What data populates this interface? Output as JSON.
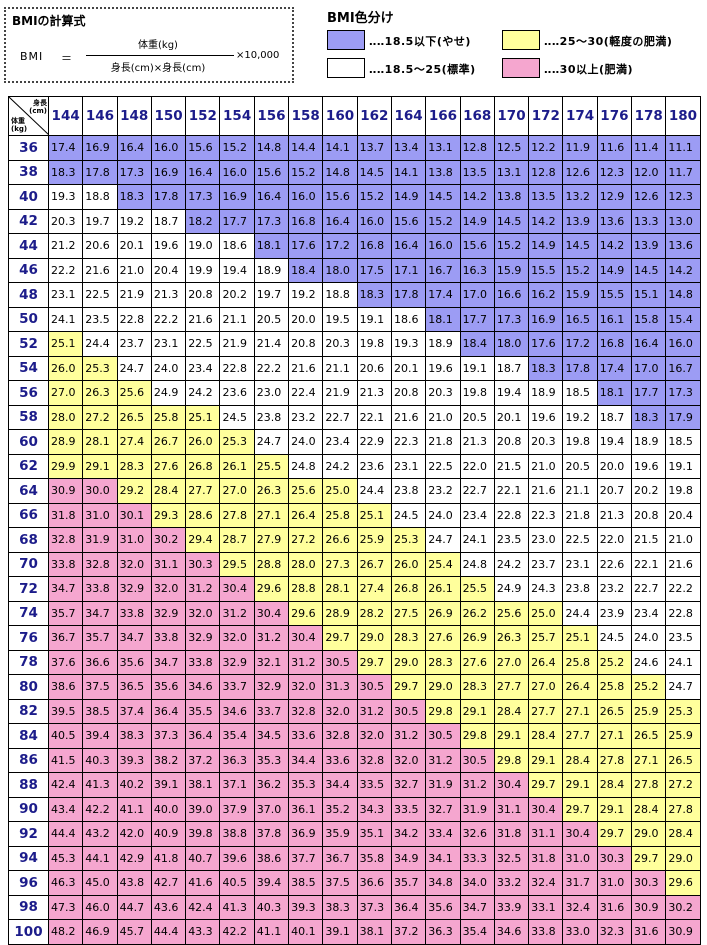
{
  "formula": {
    "title": "BMIの計算式",
    "lhs": "BMI",
    "equals": "＝",
    "numerator": "体重(kg)",
    "denominator": "身長(cm)×身長(cm)",
    "multiplier": "×10,000"
  },
  "legend": {
    "title": "BMI色分け",
    "items": [
      {
        "color": "#9c9cf4",
        "label": "‥‥18.5以下(やせ)"
      },
      {
        "color": "#ffff9c",
        "label": "‥‥25〜30(軽度の肥満)"
      },
      {
        "color": "#ffffff",
        "label": "‥‥18.5〜25(標準)"
      },
      {
        "color": "#f5a6cf",
        "label": "‥‥30以上(肥満)"
      }
    ]
  },
  "table": {
    "corner_height_label": "身長\n(cm)",
    "corner_weight_label": "体重\n(kg)",
    "heights": [
      "144",
      "146",
      "148",
      "150",
      "152",
      "154",
      "156",
      "158",
      "160",
      "162",
      "164",
      "166",
      "168",
      "170",
      "172",
      "174",
      "176",
      "178",
      "180"
    ],
    "weights": [
      "36",
      "38",
      "40",
      "42",
      "44",
      "46",
      "48",
      "50",
      "52",
      "54",
      "56",
      "58",
      "60",
      "62",
      "64",
      "66",
      "68",
      "70",
      "72",
      "74",
      "76",
      "78",
      "80",
      "82",
      "84",
      "86",
      "88",
      "90",
      "92",
      "94",
      "96",
      "98",
      "100"
    ],
    "rows": [
      [
        "17.4",
        "16.9",
        "16.4",
        "16.0",
        "15.6",
        "15.2",
        "14.8",
        "14.4",
        "14.1",
        "13.7",
        "13.4",
        "13.1",
        "12.8",
        "12.5",
        "12.2",
        "11.9",
        "11.6",
        "11.4",
        "11.1"
      ],
      [
        "18.3",
        "17.8",
        "17.3",
        "16.9",
        "16.4",
        "16.0",
        "15.6",
        "15.2",
        "14.8",
        "14.5",
        "14.1",
        "13.8",
        "13.5",
        "13.1",
        "12.8",
        "12.6",
        "12.3",
        "12.0",
        "11.7"
      ],
      [
        "19.3",
        "18.8",
        "18.3",
        "17.8",
        "17.3",
        "16.9",
        "16.4",
        "16.0",
        "15.6",
        "15.2",
        "14.9",
        "14.5",
        "14.2",
        "13.8",
        "13.5",
        "13.2",
        "12.9",
        "12.6",
        "12.3"
      ],
      [
        "20.3",
        "19.7",
        "19.2",
        "18.7",
        "18.2",
        "17.7",
        "17.3",
        "16.8",
        "16.4",
        "16.0",
        "15.6",
        "15.2",
        "14.9",
        "14.5",
        "14.2",
        "13.9",
        "13.6",
        "13.3",
        "13.0"
      ],
      [
        "21.2",
        "20.6",
        "20.1",
        "19.6",
        "19.0",
        "18.6",
        "18.1",
        "17.6",
        "17.2",
        "16.8",
        "16.4",
        "16.0",
        "15.6",
        "15.2",
        "14.9",
        "14.5",
        "14.2",
        "13.9",
        "13.6"
      ],
      [
        "22.2",
        "21.6",
        "21.0",
        "20.4",
        "19.9",
        "19.4",
        "18.9",
        "18.4",
        "18.0",
        "17.5",
        "17.1",
        "16.7",
        "16.3",
        "15.9",
        "15.5",
        "15.2",
        "14.9",
        "14.5",
        "14.2"
      ],
      [
        "23.1",
        "22.5",
        "21.9",
        "21.3",
        "20.8",
        "20.2",
        "19.7",
        "19.2",
        "18.8",
        "18.3",
        "17.8",
        "17.4",
        "17.0",
        "16.6",
        "16.2",
        "15.9",
        "15.5",
        "15.1",
        "14.8"
      ],
      [
        "24.1",
        "23.5",
        "22.8",
        "22.2",
        "21.6",
        "21.1",
        "20.5",
        "20.0",
        "19.5",
        "19.1",
        "18.6",
        "18.1",
        "17.7",
        "17.3",
        "16.9",
        "16.5",
        "16.1",
        "15.8",
        "15.4"
      ],
      [
        "25.1",
        "24.4",
        "23.7",
        "23.1",
        "22.5",
        "21.9",
        "21.4",
        "20.8",
        "20.3",
        "19.8",
        "19.3",
        "18.9",
        "18.4",
        "18.0",
        "17.6",
        "17.2",
        "16.8",
        "16.4",
        "16.0"
      ],
      [
        "26.0",
        "25.3",
        "24.7",
        "24.0",
        "23.4",
        "22.8",
        "22.2",
        "21.6",
        "21.1",
        "20.6",
        "20.1",
        "19.6",
        "19.1",
        "18.7",
        "18.3",
        "17.8",
        "17.4",
        "17.0",
        "16.7"
      ],
      [
        "27.0",
        "26.3",
        "25.6",
        "24.9",
        "24.2",
        "23.6",
        "23.0",
        "22.4",
        "21.9",
        "21.3",
        "20.8",
        "20.3",
        "19.8",
        "19.4",
        "18.9",
        "18.5",
        "18.1",
        "17.7",
        "17.3"
      ],
      [
        "28.0",
        "27.2",
        "26.5",
        "25.8",
        "25.1",
        "24.5",
        "23.8",
        "23.2",
        "22.7",
        "22.1",
        "21.6",
        "21.0",
        "20.5",
        "20.1",
        "19.6",
        "19.2",
        "18.7",
        "18.3",
        "17.9"
      ],
      [
        "28.9",
        "28.1",
        "27.4",
        "26.7",
        "26.0",
        "25.3",
        "24.7",
        "24.0",
        "23.4",
        "22.9",
        "22.3",
        "21.8",
        "21.3",
        "20.8",
        "20.3",
        "19.8",
        "19.4",
        "18.9",
        "18.5"
      ],
      [
        "29.9",
        "29.1",
        "28.3",
        "27.6",
        "26.8",
        "26.1",
        "25.5",
        "24.8",
        "24.2",
        "23.6",
        "23.1",
        "22.5",
        "22.0",
        "21.5",
        "21.0",
        "20.5",
        "20.0",
        "19.6",
        "19.1"
      ],
      [
        "30.9",
        "30.0",
        "29.2",
        "28.4",
        "27.7",
        "27.0",
        "26.3",
        "25.6",
        "25.0",
        "24.4",
        "23.8",
        "23.2",
        "22.7",
        "22.1",
        "21.6",
        "21.1",
        "20.7",
        "20.2",
        "19.8"
      ],
      [
        "31.8",
        "31.0",
        "30.1",
        "29.3",
        "28.6",
        "27.8",
        "27.1",
        "26.4",
        "25.8",
        "25.1",
        "24.5",
        "24.0",
        "23.4",
        "22.8",
        "22.3",
        "21.8",
        "21.3",
        "20.8",
        "20.4"
      ],
      [
        "32.8",
        "31.9",
        "31.0",
        "30.2",
        "29.4",
        "28.7",
        "27.9",
        "27.2",
        "26.6",
        "25.9",
        "25.3",
        "24.7",
        "24.1",
        "23.5",
        "23.0",
        "22.5",
        "22.0",
        "21.5",
        "21.0"
      ],
      [
        "33.8",
        "32.8",
        "32.0",
        "31.1",
        "30.3",
        "29.5",
        "28.8",
        "28.0",
        "27.3",
        "26.7",
        "26.0",
        "25.4",
        "24.8",
        "24.2",
        "23.7",
        "23.1",
        "22.6",
        "22.1",
        "21.6"
      ],
      [
        "34.7",
        "33.8",
        "32.9",
        "32.0",
        "31.2",
        "30.4",
        "29.6",
        "28.8",
        "28.1",
        "27.4",
        "26.8",
        "26.1",
        "25.5",
        "24.9",
        "24.3",
        "23.8",
        "23.2",
        "22.7",
        "22.2"
      ],
      [
        "35.7",
        "34.7",
        "33.8",
        "32.9",
        "32.0",
        "31.2",
        "30.4",
        "29.6",
        "28.9",
        "28.2",
        "27.5",
        "26.9",
        "26.2",
        "25.6",
        "25.0",
        "24.4",
        "23.9",
        "23.4",
        "22.8"
      ],
      [
        "36.7",
        "35.7",
        "34.7",
        "33.8",
        "32.9",
        "32.0",
        "31.2",
        "30.4",
        "29.7",
        "29.0",
        "28.3",
        "27.6",
        "26.9",
        "26.3",
        "25.7",
        "25.1",
        "24.5",
        "24.0",
        "23.5"
      ],
      [
        "37.6",
        "36.6",
        "35.6",
        "34.7",
        "33.8",
        "32.9",
        "32.1",
        "31.2",
        "30.5",
        "29.7",
        "29.0",
        "28.3",
        "27.6",
        "27.0",
        "26.4",
        "25.8",
        "25.2",
        "24.6",
        "24.1"
      ],
      [
        "38.6",
        "37.5",
        "36.5",
        "35.6",
        "34.6",
        "33.7",
        "32.9",
        "32.0",
        "31.3",
        "30.5",
        "29.7",
        "29.0",
        "28.3",
        "27.7",
        "27.0",
        "26.4",
        "25.8",
        "25.2",
        "24.7"
      ],
      [
        "39.5",
        "38.5",
        "37.4",
        "36.4",
        "35.5",
        "34.6",
        "33.7",
        "32.8",
        "32.0",
        "31.2",
        "30.5",
        "29.8",
        "29.1",
        "28.4",
        "27.7",
        "27.1",
        "26.5",
        "25.9",
        "25.3"
      ],
      [
        "40.5",
        "39.4",
        "38.3",
        "37.3",
        "36.4",
        "35.4",
        "34.5",
        "33.6",
        "32.8",
        "32.0",
        "31.2",
        "30.5",
        "29.8",
        "29.1",
        "28.4",
        "27.7",
        "27.1",
        "26.5",
        "25.9"
      ],
      [
        "41.5",
        "40.3",
        "39.3",
        "38.2",
        "37.2",
        "36.3",
        "35.3",
        "34.4",
        "33.6",
        "32.8",
        "32.0",
        "31.2",
        "30.5",
        "29.8",
        "29.1",
        "28.4",
        "27.8",
        "27.1",
        "26.5"
      ],
      [
        "42.4",
        "41.3",
        "40.2",
        "39.1",
        "38.1",
        "37.1",
        "36.2",
        "35.3",
        "34.4",
        "33.5",
        "32.7",
        "31.9",
        "31.2",
        "30.4",
        "29.7",
        "29.1",
        "28.4",
        "27.8",
        "27.2"
      ],
      [
        "43.4",
        "42.2",
        "41.1",
        "40.0",
        "39.0",
        "37.9",
        "37.0",
        "36.1",
        "35.2",
        "34.3",
        "33.5",
        "32.7",
        "31.9",
        "31.1",
        "30.4",
        "29.7",
        "29.1",
        "28.4",
        "27.8"
      ],
      [
        "44.4",
        "43.2",
        "42.0",
        "40.9",
        "39.8",
        "38.8",
        "37.8",
        "36.9",
        "35.9",
        "35.1",
        "34.2",
        "33.4",
        "32.6",
        "31.8",
        "31.1",
        "30.4",
        "29.7",
        "29.0",
        "28.4"
      ],
      [
        "45.3",
        "44.1",
        "42.9",
        "41.8",
        "40.7",
        "39.6",
        "38.6",
        "37.7",
        "36.7",
        "35.8",
        "34.9",
        "34.1",
        "33.3",
        "32.5",
        "31.8",
        "31.0",
        "30.3",
        "29.7",
        "29.0"
      ],
      [
        "46.3",
        "45.0",
        "43.8",
        "42.7",
        "41.6",
        "40.5",
        "39.4",
        "38.5",
        "37.5",
        "36.6",
        "35.7",
        "34.8",
        "34.0",
        "33.2",
        "32.4",
        "31.7",
        "31.0",
        "30.3",
        "29.6"
      ],
      [
        "47.3",
        "46.0",
        "44.7",
        "43.6",
        "42.4",
        "41.3",
        "40.3",
        "39.3",
        "38.3",
        "37.3",
        "36.4",
        "35.6",
        "34.7",
        "33.9",
        "33.1",
        "32.4",
        "31.6",
        "30.9",
        "30.2"
      ],
      [
        "48.2",
        "46.9",
        "45.7",
        "44.4",
        "43.3",
        "42.2",
        "41.1",
        "40.1",
        "39.1",
        "38.1",
        "37.2",
        "36.3",
        "35.4",
        "34.6",
        "33.8",
        "33.0",
        "32.3",
        "31.6",
        "30.9"
      ]
    ]
  }
}
